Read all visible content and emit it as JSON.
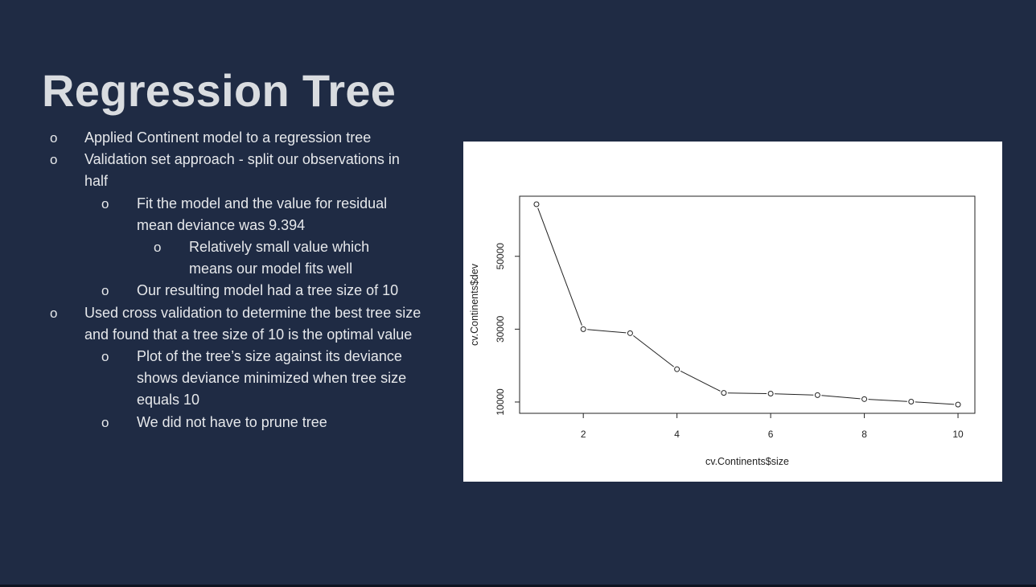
{
  "slide": {
    "title": "Regression Tree",
    "bullet_marker": "o",
    "bullets": [
      {
        "level": 1,
        "text": "Applied Continent model to a regression tree"
      },
      {
        "level": 1,
        "text": "Validation set approach - split our observations in half"
      },
      {
        "level": 2,
        "text": "Fit the model and the value for residual mean deviance was 9.394"
      },
      {
        "level": 3,
        "text": "Relatively small value which means our model fits well"
      },
      {
        "level": 2,
        "text": "Our resulting model had a tree size of 10"
      },
      {
        "level": 1,
        "text": "Used cross validation to determine the best tree size and found that a tree size of 10 is the optimal value"
      },
      {
        "level": 2,
        "text": "Plot of the tree’s size against its deviance shows deviance minimized when tree size equals 10"
      },
      {
        "level": 2,
        "text": "We did not have to prune tree"
      }
    ]
  },
  "colors": {
    "background": "#1f2b44",
    "title": "#d9dce0",
    "body_text": "#e6e8eb",
    "chart_bg": "#ffffff",
    "chart_ink": "#222222"
  },
  "chart_data": {
    "type": "line",
    "markers": "open-circle",
    "x": [
      1,
      2,
      3,
      4,
      5,
      6,
      7,
      8,
      9,
      10
    ],
    "y": [
      64300,
      30000,
      28900,
      19000,
      12500,
      12300,
      11900,
      10800,
      10100,
      9300
    ],
    "xlabel": "cv.Continents$size",
    "ylabel": "cv.Continents$dev",
    "xticks": [
      2,
      4,
      6,
      8,
      10
    ],
    "yticks": [
      10000,
      30000,
      50000
    ],
    "xlim": [
      0.64,
      10.36
    ],
    "ylim": [
      6900,
      66500
    ],
    "grid": false
  }
}
